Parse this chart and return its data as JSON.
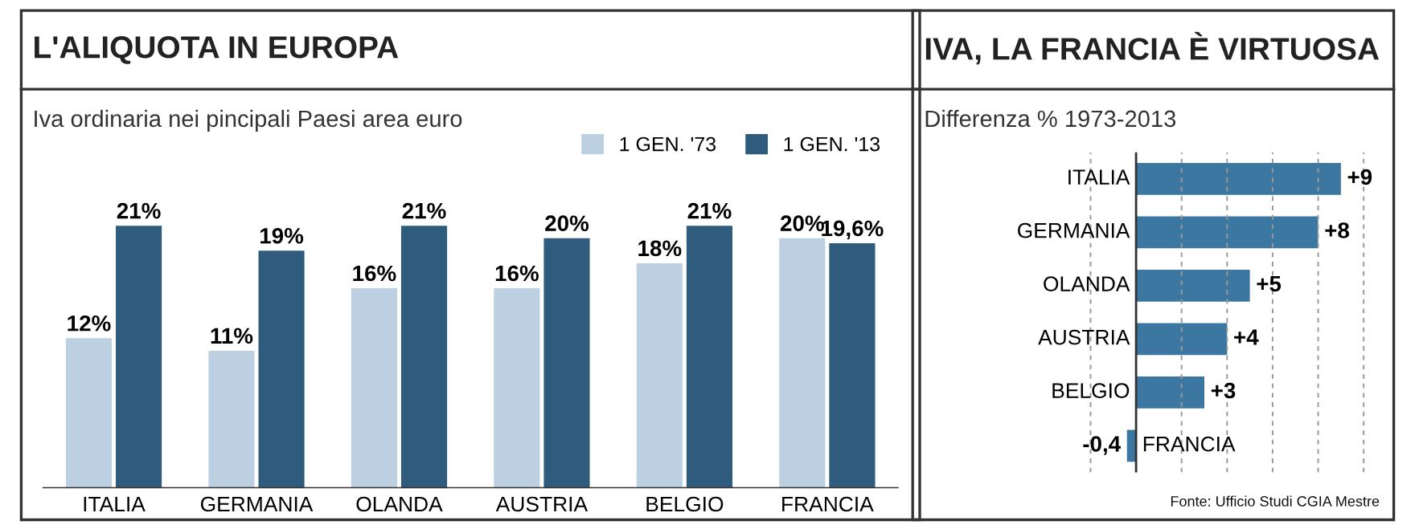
{
  "chart_data": [
    {
      "type": "bar",
      "title": "L'ALIQUOTA IN EUROPA",
      "subtitle": "Iva ordinaria nei pincipali Paesi area euro",
      "categories": [
        "ITALIA",
        "GERMANIA",
        "OLANDA",
        "AUSTRIA",
        "BELGIO",
        "FRANCIA"
      ],
      "legend": "top right",
      "series": [
        {
          "name": "1 GEN. '73",
          "color": "#bcd0e2",
          "values": [
            12,
            11,
            16,
            16,
            18,
            20
          ],
          "value_labels": [
            "12%",
            "11%",
            "16%",
            "16%",
            "18%",
            "20%"
          ]
        },
        {
          "name": "1 GEN. '13",
          "color": "#2f5b7c",
          "values": [
            21,
            19,
            21,
            20,
            21,
            19.6
          ],
          "value_labels": [
            "21%",
            "19%",
            "21%",
            "20%",
            "21%",
            "19,6%"
          ]
        }
      ]
    },
    {
      "type": "bar",
      "orientation": "horizontal",
      "title": "IVA, LA FRANCIA È VIRTUOSA",
      "subtitle": "Differenza % 1973-2013",
      "categories": [
        "ITALIA",
        "GERMANIA",
        "OLANDA",
        "AUSTRIA",
        "BELGIO",
        "FRANCIA"
      ],
      "grid": "x",
      "series": [
        {
          "color": "#3b77a0",
          "values": [
            9,
            8,
            5,
            4,
            3,
            -0.4
          ],
          "value_labels": [
            "+9",
            "+8",
            "+5",
            "+4",
            "+3",
            "-0,4"
          ]
        }
      ],
      "annotations": [
        "Fonte: Ufficio Studi CGIA Mestre"
      ]
    }
  ]
}
